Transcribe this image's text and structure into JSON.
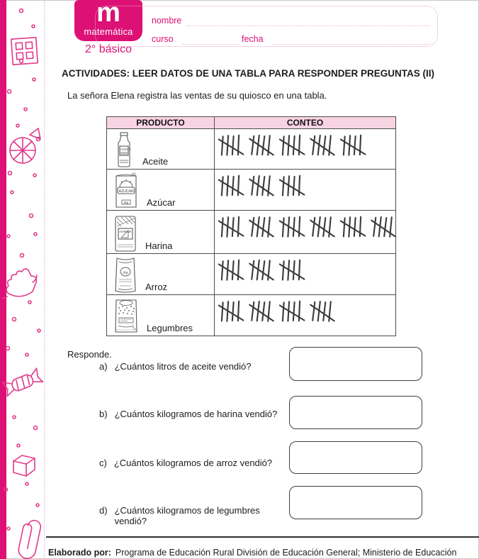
{
  "brand": {
    "logo_letter": "m",
    "logo_title": "matemática",
    "logo_subtitle": "2° básico"
  },
  "form": {
    "nombre_label": "nombre",
    "curso_label": "curso",
    "fecha_label": "fecha"
  },
  "title": "ACTIVIDADES: LEER DATOS DE UNA TABLA PARA RESPONDER PREGUNTAS (II)",
  "intro": "La señora Elena registra las ventas de su quiosco en una tabla.",
  "table": {
    "headers": [
      "PRODUCTO",
      "CONTEO"
    ],
    "rows": [
      {
        "producto": "Aceite",
        "icon": "oil-bottle-icon",
        "icon_label": "ACEITE",
        "conteo": 25
      },
      {
        "producto": "Azúcar",
        "icon": "sugar-bag-icon",
        "icon_label": "AZUCAR",
        "icon_sublabel": "1kg",
        "conteo": 15
      },
      {
        "producto": "Harina",
        "icon": "flour-bag-icon",
        "icon_label": "HARINA",
        "conteo": 30
      },
      {
        "producto": "Arroz",
        "icon": "rice-bag-icon",
        "icon_label": "1kg",
        "conteo": 15
      },
      {
        "producto": "Legumbres",
        "icon": "legumes-bag-icon",
        "icon_label": "",
        "conteo": 20
      }
    ],
    "tally_group_size": 5
  },
  "questions": {
    "heading": "Responde.",
    "items": [
      {
        "letter": "a)",
        "text": "¿Cuántos litros de aceite vendió?"
      },
      {
        "letter": "b)",
        "text": "¿Cuántos kilogramos de harina vendió?"
      },
      {
        "letter": "c)",
        "text": "¿Cuántos kilogramos de arroz vendió?"
      },
      {
        "letter": "d)",
        "text": "¿Cuántos kilogramos de legumbres vendió?"
      }
    ]
  },
  "footer": {
    "prefix": "Elaborado por:",
    "text": "Programa de Educación Rural División de Educación General; Ministerio de Educación"
  },
  "decorations": [
    "dice-icon",
    "orange-slice-icon",
    "hand-icon",
    "candy-icon",
    "cube-icon",
    "paperclip-icon",
    "dots"
  ],
  "colors": {
    "accent": "#dd1175",
    "header_bg": "#f8d3e2",
    "doodle": "#e23a8c",
    "tally": "#3b3b3b"
  }
}
